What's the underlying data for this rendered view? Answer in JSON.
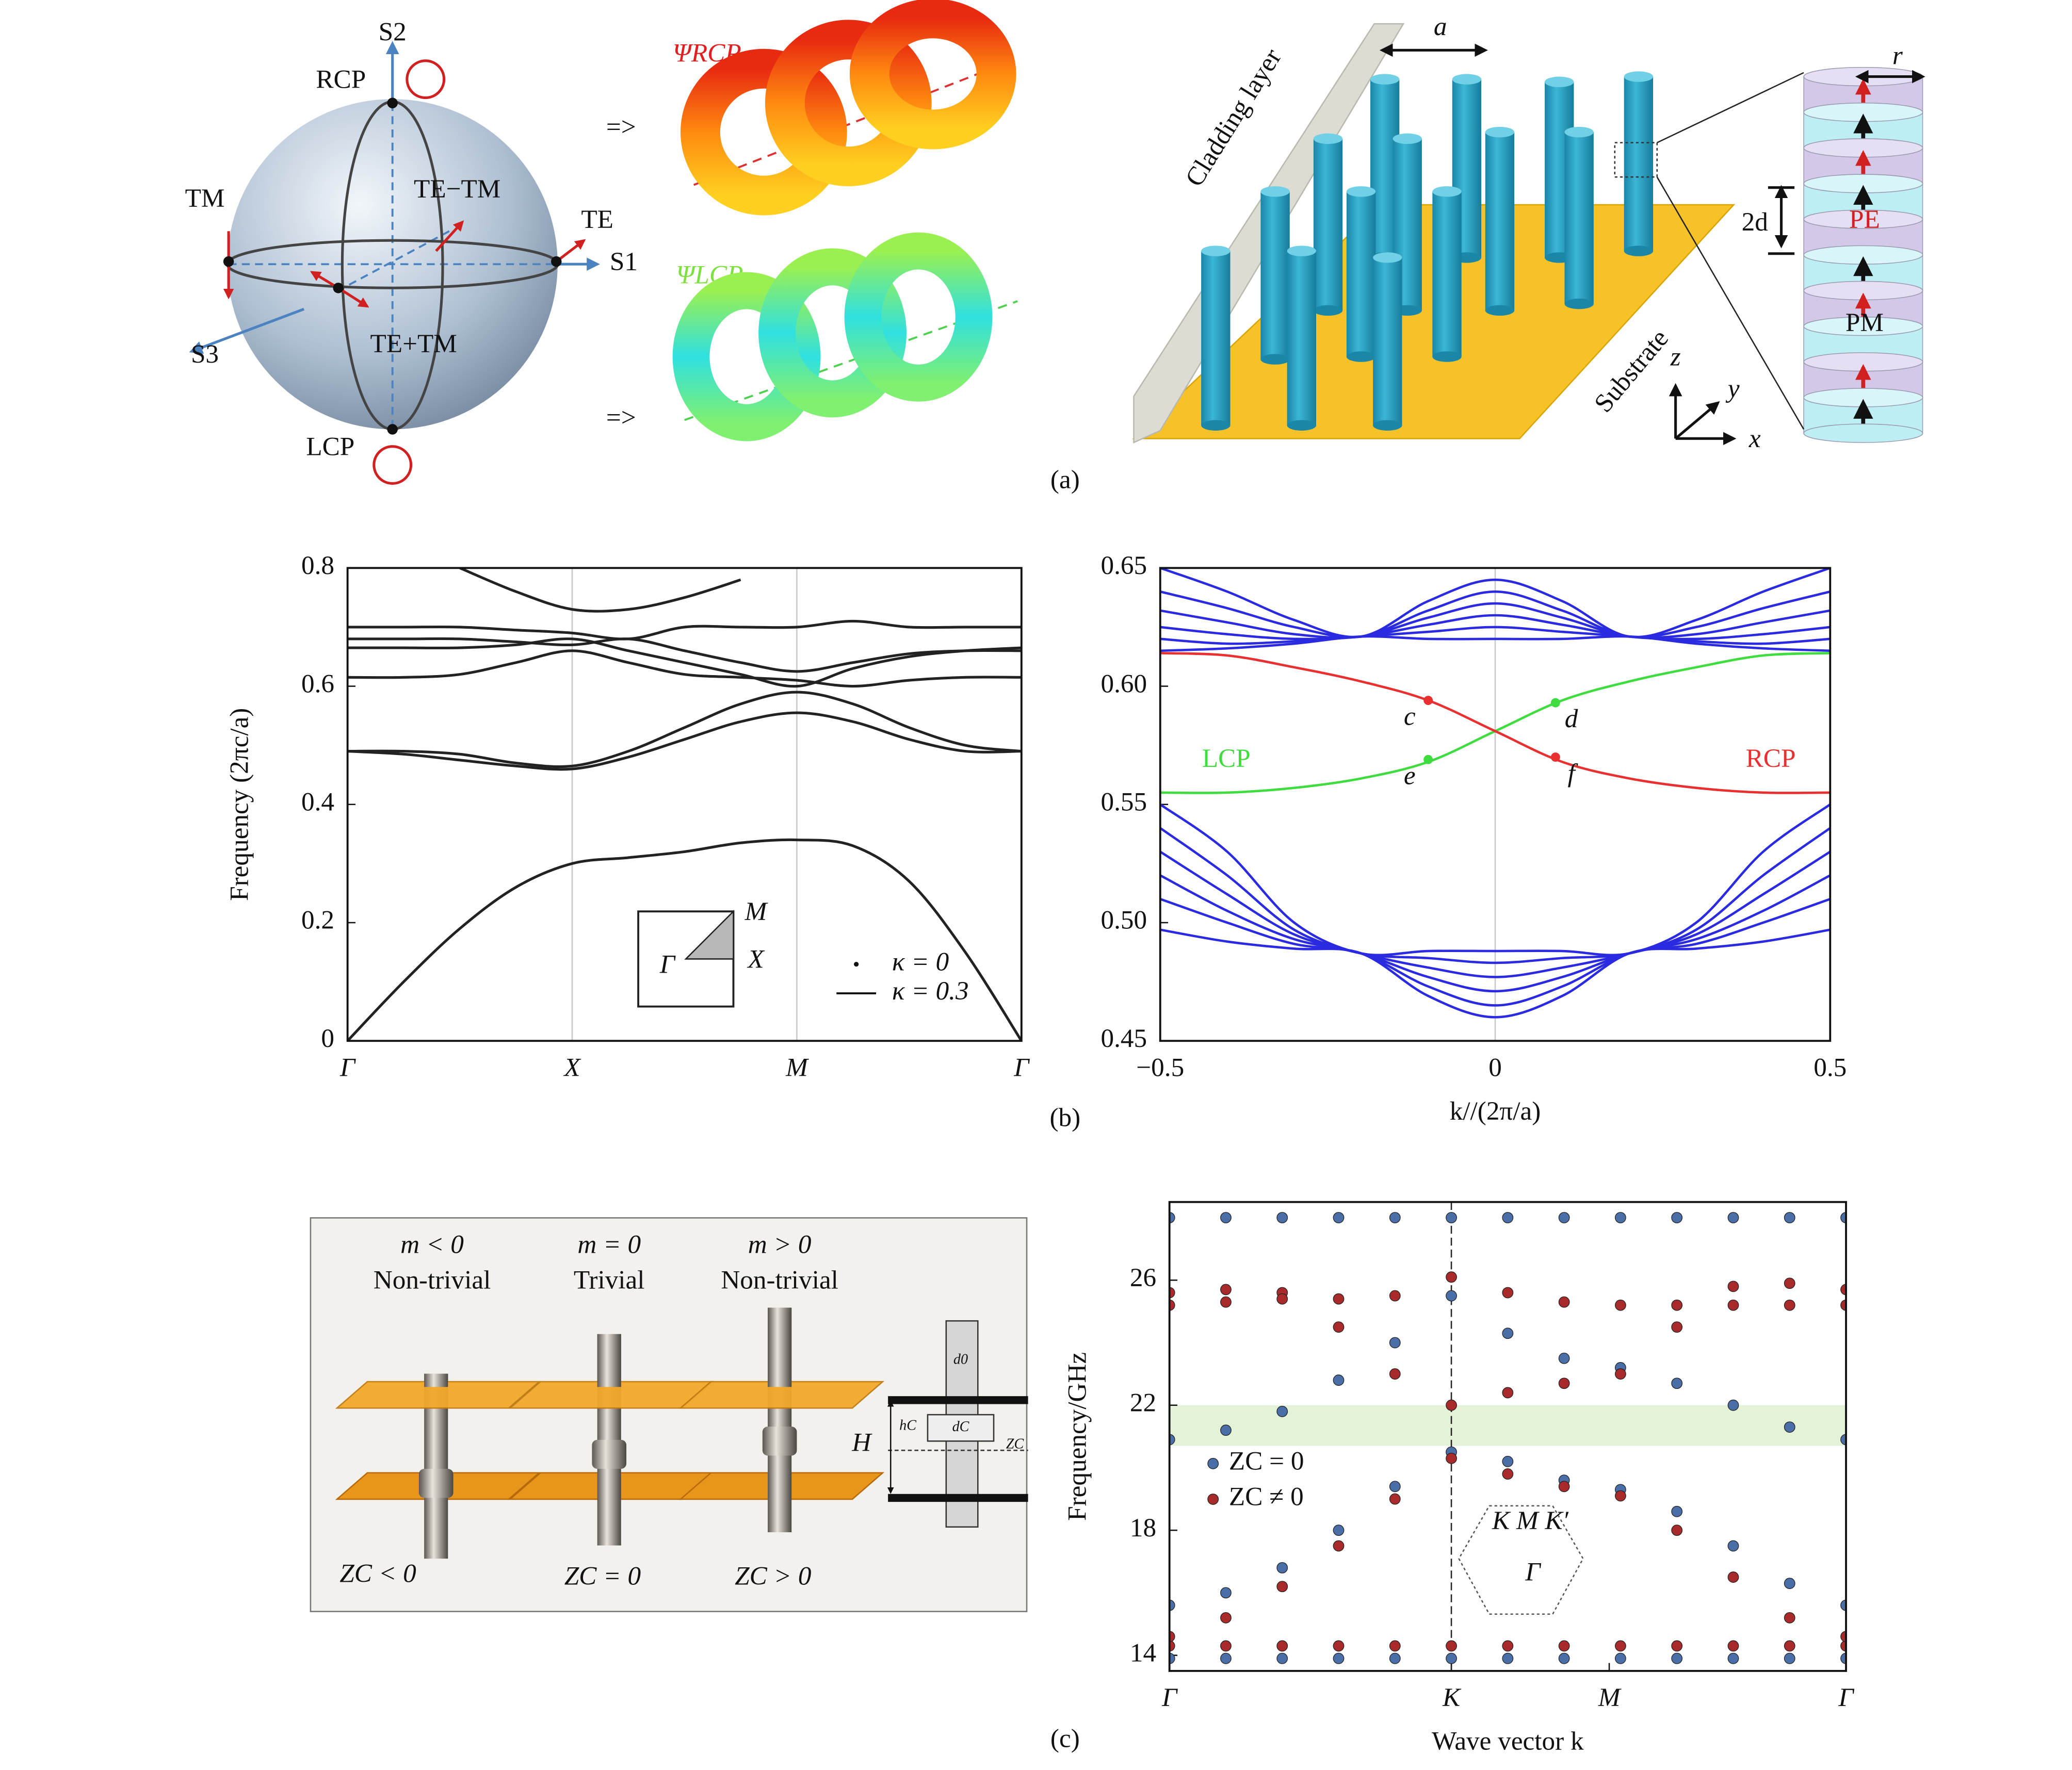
{
  "panel_a": {
    "sphere_labels": [
      "S2",
      "RCP",
      "TM",
      "TE−TM",
      "TE",
      "S1",
      "S3",
      "TE+TM",
      "LCP"
    ],
    "arrows": [
      "=>",
      "=>"
    ],
    "psi_rcp": "ΨRCP",
    "psi_lcp": "ΨLCP",
    "structure_labels": [
      "Cladding layer",
      "a",
      "r",
      "2d",
      "PE",
      "PM",
      "Substrate",
      "z",
      "y",
      "x"
    ],
    "caption": "(a)"
  },
  "panel_b": {
    "caption": "(b)"
  },
  "panel_c": {
    "rod_labels": [
      "m < 0",
      "Non-trivial",
      "m = 0",
      "Trivial",
      "m > 0",
      "Non-trivial"
    ],
    "zc_labels": [
      "ZC < 0",
      "ZC = 0",
      "ZC > 0"
    ],
    "schematic_labels": [
      "H",
      "d0",
      "dC",
      "hC",
      "ZC"
    ],
    "caption": "(c)"
  },
  "chart_data": [
    {
      "type": "line",
      "ylabel": "Frequency (2πc/a)",
      "x": [
        0,
        0.25,
        0.5,
        0.75,
        1,
        1.25,
        1.5,
        1.75,
        2,
        2.25,
        2.5,
        2.75,
        3
      ],
      "xlim": [
        0,
        3
      ],
      "xticks": [
        {
          "value": 0,
          "label": "Γ"
        },
        {
          "value": 1,
          "label": "X"
        },
        {
          "value": 2,
          "label": "M"
        },
        {
          "value": 3,
          "label": "Γ"
        }
      ],
      "ylim": [
        0,
        0.8
      ],
      "yticks": [
        0,
        0.2,
        0.4,
        0.6,
        0.8
      ],
      "xgrid": true,
      "series": [
        {
          "color": "#222222",
          "values": [
            0,
            0.1,
            0.19,
            0.26,
            0.3,
            0.31,
            0.32,
            0.335,
            0.34,
            0.33,
            0.27,
            0.15,
            0
          ]
        },
        {
          "color": "#222222",
          "values": [
            0.49,
            0.485,
            0.475,
            0.465,
            0.46,
            0.48,
            0.51,
            0.54,
            0.555,
            0.54,
            0.51,
            0.49,
            0.49
          ]
        },
        {
          "color": "#222222",
          "values": [
            0.49,
            0.49,
            0.485,
            0.47,
            0.465,
            0.49,
            0.53,
            0.57,
            0.59,
            0.57,
            0.53,
            0.5,
            0.49
          ]
        },
        {
          "color": "#222222",
          "values": [
            0.615,
            0.615,
            0.62,
            0.64,
            0.66,
            0.64,
            0.62,
            0.615,
            0.61,
            0.6,
            0.61,
            0.615,
            0.615
          ]
        },
        {
          "color": "#222222",
          "values": [
            0.665,
            0.665,
            0.665,
            0.67,
            0.68,
            0.66,
            0.64,
            0.62,
            0.6,
            0.63,
            0.65,
            0.66,
            0.665
          ]
        },
        {
          "color": "#222222",
          "values": [
            0.68,
            0.68,
            0.68,
            0.675,
            0.67,
            0.68,
            0.66,
            0.64,
            0.625,
            0.64,
            0.655,
            0.66,
            0.66
          ]
        },
        {
          "color": "#222222",
          "values": [
            0.7,
            0.7,
            0.7,
            0.695,
            0.69,
            0.68,
            0.7,
            0.7,
            0.7,
            0.71,
            0.7,
            0.7,
            0.7
          ]
        },
        {
          "color": "#222222",
          "values": [
            null,
            null,
            0.8,
            0.76,
            0.73,
            0.73,
            0.75,
            0.78,
            null,
            null,
            null,
            null,
            null
          ]
        }
      ],
      "legend": [
        {
          "label": "κ = 0",
          "marker": "dot"
        },
        {
          "label": "κ = 0.3",
          "marker": "line"
        }
      ],
      "legend_position": "lower right",
      "inset_labels": [
        "M",
        "X",
        "Γ"
      ]
    },
    {
      "type": "line",
      "xlabel": "k//(2π/a)",
      "x": [
        -0.5,
        -0.4,
        -0.3,
        -0.2,
        -0.1,
        0,
        0.1,
        0.2,
        0.3,
        0.4,
        0.5
      ],
      "xlim": [
        -0.5,
        0.5
      ],
      "xticks": [
        {
          "value": -0.5,
          "label": "−0.5"
        },
        0,
        0.5
      ],
      "ylim": [
        0.45,
        0.65
      ],
      "yticks": [
        0.45,
        {
          "value": 0.5,
          "label": "0.50"
        },
        0.55,
        {
          "value": 0.6,
          "label": "0.60"
        },
        0.65
      ],
      "xgrid": true,
      "series": [
        {
          "color": "#2a2ae0",
          "values": [
            0.55,
            0.53,
            0.5,
            0.487,
            0.488,
            0.488,
            0.488,
            0.487,
            0.5,
            0.53,
            0.55
          ]
        },
        {
          "color": "#2a2ae0",
          "values": [
            0.54,
            0.52,
            0.497,
            0.487,
            0.485,
            0.483,
            0.485,
            0.487,
            0.497,
            0.52,
            0.54
          ]
        },
        {
          "color": "#2a2ae0",
          "values": [
            0.53,
            0.512,
            0.495,
            0.487,
            0.481,
            0.477,
            0.481,
            0.487,
            0.495,
            0.512,
            0.53
          ]
        },
        {
          "color": "#2a2ae0",
          "values": [
            0.52,
            0.505,
            0.493,
            0.487,
            0.477,
            0.471,
            0.477,
            0.487,
            0.493,
            0.505,
            0.52
          ]
        },
        {
          "color": "#2a2ae0",
          "values": [
            0.51,
            0.5,
            0.491,
            0.487,
            0.473,
            0.465,
            0.473,
            0.487,
            0.491,
            0.5,
            0.51
          ]
        },
        {
          "color": "#2a2ae0",
          "values": [
            0.497,
            0.492,
            0.489,
            0.487,
            0.469,
            0.46,
            0.469,
            0.487,
            0.489,
            0.492,
            0.497
          ]
        },
        {
          "color": "#2a2ae0",
          "values": [
            0.615,
            0.616,
            0.618,
            0.621,
            0.62,
            0.62,
            0.62,
            0.621,
            0.618,
            0.616,
            0.615
          ]
        },
        {
          "color": "#2a2ae0",
          "values": [
            0.62,
            0.618,
            0.619,
            0.621,
            0.623,
            0.625,
            0.623,
            0.621,
            0.619,
            0.618,
            0.62
          ]
        },
        {
          "color": "#2a2ae0",
          "values": [
            0.625,
            0.622,
            0.62,
            0.621,
            0.626,
            0.63,
            0.626,
            0.621,
            0.62,
            0.622,
            0.625
          ]
        },
        {
          "color": "#2a2ae0",
          "values": [
            0.632,
            0.627,
            0.622,
            0.621,
            0.629,
            0.635,
            0.629,
            0.621,
            0.622,
            0.627,
            0.632
          ]
        },
        {
          "color": "#2a2ae0",
          "values": [
            0.64,
            0.633,
            0.625,
            0.621,
            0.632,
            0.64,
            0.632,
            0.621,
            0.625,
            0.633,
            0.64
          ]
        },
        {
          "color": "#2a2ae0",
          "values": [
            0.65,
            0.64,
            0.628,
            0.621,
            0.636,
            0.645,
            0.636,
            0.621,
            0.628,
            0.64,
            0.65
          ]
        },
        {
          "name": "LCP",
          "color": "#3fdc3f",
          "values": [
            0.555,
            0.555,
            0.557,
            0.561,
            0.568,
            0.581,
            0.594,
            0.602,
            0.608,
            0.613,
            0.614
          ]
        },
        {
          "name": "RCP",
          "color": "#e83030",
          "values": [
            0.614,
            0.613,
            0.608,
            0.602,
            0.594,
            0.581,
            0.568,
            0.561,
            0.557,
            0.555,
            0.555
          ]
        }
      ],
      "points": [
        {
          "label": "c",
          "x": -0.1,
          "y": 0.594,
          "color": "#e83030"
        },
        {
          "label": "d",
          "x": 0.09,
          "y": 0.593,
          "color": "#3fdc3f"
        },
        {
          "label": "e",
          "x": -0.1,
          "y": 0.569,
          "color": "#3fdc3f"
        },
        {
          "label": "f",
          "x": 0.09,
          "y": 0.57,
          "color": "#e83030"
        }
      ]
    },
    {
      "type": "scatter",
      "ylabel": "Frequency/GHz",
      "xlabel": "Wave vector k",
      "x": [
        0,
        0.2,
        0.4,
        0.6,
        0.8,
        1,
        1.2,
        1.4,
        1.6,
        1.8,
        2,
        2.2,
        2.4
      ],
      "xlim": [
        0,
        2.4
      ],
      "xticks": [
        {
          "value": 0,
          "label": "Γ"
        },
        {
          "value": 1,
          "label": "K"
        },
        {
          "value": 1.56,
          "label": "M"
        },
        {
          "value": 2.4,
          "label": "Γ"
        }
      ],
      "ylim": [
        13.5,
        28.5
      ],
      "yticks": [
        14,
        18,
        22,
        26
      ],
      "vline": 1,
      "band_gap": [
        20.7,
        22
      ],
      "series": [
        {
          "name": "ZC = 0",
          "color": "#4a6fa8",
          "values": [
            13.9,
            13.9,
            13.9,
            13.9,
            13.9,
            13.9,
            13.9,
            13.9,
            13.9,
            13.9,
            13.9,
            13.9,
            13.9
          ]
        },
        {
          "color": "#4a6fa8",
          "values": [
            15.6,
            16,
            16.8,
            18,
            19.4,
            20.5,
            20.2,
            19.6,
            19.3,
            18.6,
            17.5,
            16.3,
            15.6
          ]
        },
        {
          "color": "#4a6fa8",
          "values": [
            20.9,
            21.2,
            21.8,
            22.8,
            24,
            25.5,
            24.3,
            23.5,
            23.2,
            22.7,
            22,
            21.3,
            20.9
          ]
        },
        {
          "color": "#4a6fa8",
          "values": [
            28,
            28,
            28,
            28,
            28,
            28,
            28,
            28,
            28,
            28,
            28,
            28,
            28
          ]
        },
        {
          "name": "ZC ≠ 0",
          "color": "#a82a2a",
          "values": [
            14.3,
            14.3,
            14.3,
            14.3,
            14.3,
            14.3,
            14.3,
            14.3,
            14.3,
            14.3,
            14.3,
            14.3,
            14.3
          ]
        },
        {
          "color": "#a82a2a",
          "values": [
            14.6,
            15.2,
            16.2,
            17.5,
            19,
            20.3,
            19.8,
            19.4,
            19.1,
            18,
            16.5,
            15.2,
            14.6
          ]
        },
        {
          "color": "#a82a2a",
          "values": [
            25.6,
            25.7,
            25.6,
            24.5,
            23,
            22,
            22.4,
            22.7,
            23,
            24.5,
            25.8,
            25.9,
            25.7
          ]
        },
        {
          "color": "#a82a2a",
          "values": [
            25.2,
            25.3,
            25.4,
            25.4,
            25.5,
            26.1,
            25.6,
            25.3,
            25.2,
            25.2,
            25.2,
            25.2,
            25.2
          ]
        }
      ],
      "inset_labels": [
        "K M K′",
        "Γ"
      ]
    }
  ]
}
